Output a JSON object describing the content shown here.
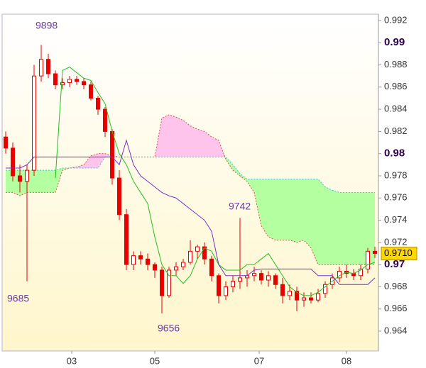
{
  "chart_data": {
    "type": "candlestick",
    "x": [
      1,
      3,
      5,
      7,
      9,
      11,
      13,
      15,
      17,
      19,
      21,
      23,
      25,
      27,
      29,
      31,
      33,
      35,
      37,
      39,
      41,
      43,
      45,
      47,
      49,
      51,
      53,
      55,
      57,
      59,
      61,
      63,
      65,
      67,
      69,
      71,
      73,
      75,
      77,
      79,
      81,
      83,
      85,
      87,
      89,
      91,
      93,
      95,
      97,
      99,
      101,
      103,
      105
    ],
    "open": [
      0.9815,
      0.9805,
      0.978,
      0.9775,
      0.9785,
      0.987,
      0.9885,
      0.9872,
      0.9862,
      0.9864,
      0.9867,
      0.9865,
      0.9862,
      0.985,
      0.984,
      0.982,
      0.9778,
      0.9745,
      0.97,
      0.9708,
      0.9705,
      0.97,
      0.9695,
      0.9672,
      0.9695,
      0.9698,
      0.9702,
      0.9712,
      0.9716,
      0.9705,
      0.969,
      0.9672,
      0.968,
      0.9685,
      0.9688,
      0.969,
      0.9692,
      0.9686,
      0.969,
      0.9682,
      0.9672,
      0.9676,
      0.9668,
      0.967,
      0.9668,
      0.9674,
      0.9682,
      0.9688,
      0.9694,
      0.9692,
      0.969,
      0.9696,
      0.9712
    ],
    "high": [
      0.982,
      0.981,
      0.979,
      0.979,
      0.988,
      0.9898,
      0.989,
      0.9875,
      0.9868,
      0.987,
      0.987,
      0.9868,
      0.9865,
      0.9852,
      0.9842,
      0.9822,
      0.9785,
      0.975,
      0.9712,
      0.9712,
      0.971,
      0.9702,
      0.9698,
      0.9698,
      0.9702,
      0.9705,
      0.9722,
      0.9718,
      0.972,
      0.9708,
      0.9692,
      0.9685,
      0.969,
      0.9742,
      0.9695,
      0.9698,
      0.9695,
      0.9694,
      0.9692,
      0.9688,
      0.9682,
      0.968,
      0.9675,
      0.9675,
      0.9678,
      0.9685,
      0.9692,
      0.9698,
      0.97,
      0.9696,
      0.97,
      0.9715,
      0.9716
    ],
    "low": [
      0.98,
      0.9775,
      0.9765,
      0.9685,
      0.978,
      0.9865,
      0.9868,
      0.9858,
      0.9858,
      0.986,
      0.9862,
      0.9858,
      0.9848,
      0.9835,
      0.9815,
      0.9772,
      0.974,
      0.9695,
      0.9695,
      0.97,
      0.9695,
      0.9688,
      0.9656,
      0.967,
      0.969,
      0.9695,
      0.97,
      0.9705,
      0.97,
      0.9685,
      0.9665,
      0.9668,
      0.9675,
      0.9678,
      0.968,
      0.9685,
      0.9682,
      0.968,
      0.9678,
      0.9665,
      0.9668,
      0.9658,
      0.9662,
      0.9665,
      0.9666,
      0.967,
      0.9678,
      0.9684,
      0.9688,
      0.9686,
      0.9686,
      0.9692,
      0.9706
    ],
    "close": [
      0.9805,
      0.978,
      0.9775,
      0.9785,
      0.987,
      0.9885,
      0.9872,
      0.9862,
      0.9864,
      0.9867,
      0.9865,
      0.9862,
      0.985,
      0.984,
      0.982,
      0.9778,
      0.9745,
      0.97,
      0.9708,
      0.9705,
      0.97,
      0.9695,
      0.9672,
      0.9695,
      0.9698,
      0.9702,
      0.9712,
      0.9716,
      0.9705,
      0.969,
      0.9672,
      0.968,
      0.9685,
      0.9688,
      0.969,
      0.9692,
      0.9686,
      0.969,
      0.9682,
      0.9672,
      0.9676,
      0.9668,
      0.967,
      0.9668,
      0.9674,
      0.9682,
      0.9688,
      0.9694,
      0.9692,
      0.969,
      0.9696,
      0.9712,
      0.971
    ],
    "candle_color": "#e80000",
    "lines": [
      {
        "color": "#20c020",
        "values": [
          null,
          null,
          null,
          null,
          null,
          null,
          null,
          0.9778,
          0.9875,
          0.9878,
          0.9873,
          0.9868,
          0.9866,
          0.9855,
          0.9845,
          0.982,
          0.98,
          0.979,
          0.9775,
          0.9765,
          0.9755,
          0.9725,
          0.97,
          0.969,
          0.969,
          0.9683,
          0.969,
          0.9705,
          0.9715,
          0.9712,
          0.97,
          0.9695,
          0.9695,
          0.9695,
          0.97,
          0.97,
          0.9705,
          0.971,
          0.97,
          0.969,
          0.968,
          0.9675,
          0.9672,
          0.9672,
          0.9675,
          0.968,
          0.9685,
          0.969,
          0.9693,
          0.9692,
          0.9695,
          0.97,
          0.9702
        ]
      },
      {
        "color": "#7a30c8",
        "values": [
          0.9787,
          0.9787,
          0.9787,
          0.979,
          0.9797,
          0.9797,
          0.9797,
          0.9797,
          0.9797,
          0.9797,
          0.9797,
          0.9797,
          0.9797,
          0.9797,
          0.9797,
          0.9797,
          0.979,
          0.9812,
          0.979,
          0.978,
          0.9775,
          0.977,
          0.9765,
          0.9762,
          0.976,
          0.9755,
          0.975,
          0.9745,
          0.974,
          0.973,
          0.97,
          0.969,
          0.969,
          0.969,
          0.969,
          0.9695,
          0.9696,
          0.9696,
          0.9696,
          0.9696,
          0.9696,
          0.9696,
          0.9696,
          0.9696,
          0.969,
          0.969,
          0.969,
          0.9682,
          0.9682,
          0.9682,
          0.9682,
          0.9682,
          0.9688
        ]
      }
    ],
    "span_a": {
      "color": "#e05050",
      "values": [
        0.9765,
        0.9765,
        0.9762,
        0.9765,
        0.9765,
        0.9765,
        0.9765,
        0.9765,
        0.9785,
        0.9787,
        0.9788,
        0.979,
        0.9798,
        0.98,
        0.98,
        0.9798,
        0.9797,
        0.9797,
        0.9797,
        0.9797,
        0.9797,
        0.9797,
        0.9832,
        0.9835,
        0.9833,
        0.983,
        0.9825,
        0.9822,
        0.982,
        0.9815,
        0.9812,
        0.9795,
        0.9785,
        0.978,
        0.9775,
        0.9765,
        0.9735,
        0.9725,
        0.9722,
        0.9722,
        0.9722,
        0.972,
        0.9722,
        0.9715,
        0.97,
        0.97,
        0.97,
        0.97,
        0.97,
        0.97,
        0.97,
        0.97,
        0.97
      ]
    },
    "span_b": {
      "color": "#30c8d8",
      "values": [
        0.9785,
        0.9785,
        0.9785,
        0.9785,
        0.9785,
        0.9785,
        0.9785,
        0.9785,
        0.9787,
        0.9787,
        0.9787,
        0.9787,
        0.9787,
        0.9787,
        0.9797,
        0.9797,
        0.9797,
        0.9797,
        0.9797,
        0.9797,
        0.9797,
        0.9797,
        0.9797,
        0.9797,
        0.9797,
        0.9797,
        0.9797,
        0.9797,
        0.9797,
        0.9797,
        0.9797,
        0.9797,
        0.979,
        0.9782,
        0.9777,
        0.9777,
        0.9777,
        0.9777,
        0.9777,
        0.9777,
        0.9777,
        0.9777,
        0.9777,
        0.9777,
        0.9777,
        0.977,
        0.9767,
        0.9765,
        0.9765,
        0.9765,
        0.9765,
        0.9765,
        0.9765
      ]
    },
    "cloud_colors": {
      "a_above": "#ffc4ec",
      "b_above": "#b4ffa0"
    },
    "xlim": [
      0,
      106
    ],
    "xticks": [
      {
        "value": 19.6,
        "label": "03"
      },
      {
        "value": 43,
        "label": "05"
      },
      {
        "value": 72.4,
        "label": "07"
      },
      {
        "value": 97,
        "label": "08"
      }
    ],
    "ylim": [
      0.96221,
      0.99257
    ],
    "yticks": [
      0.964,
      0.966,
      0.968,
      0.97,
      0.972,
      0.974,
      0.976,
      0.978,
      0.98,
      0.982,
      0.984,
      0.986,
      0.988,
      0.99,
      0.992
    ],
    "annotations": [
      "9898",
      "9685",
      "9742",
      "9656"
    ],
    "last_price": {
      "value": 0.971,
      "label": "0.9710"
    }
  }
}
